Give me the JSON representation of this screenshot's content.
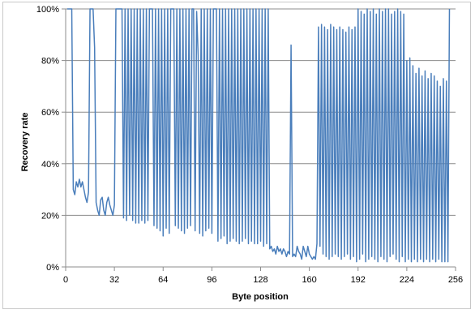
{
  "chart_data": {
    "type": "line",
    "title": "",
    "xlabel": "Byte position",
    "ylabel": "Recovery rate",
    "xlim": [
      0,
      256
    ],
    "ylim": [
      0,
      100
    ],
    "x_ticks": [
      0,
      32,
      64,
      96,
      128,
      160,
      192,
      224,
      256
    ],
    "x_tick_labels": [
      "0",
      "32",
      "64",
      "96",
      "128",
      "160",
      "192",
      "224",
      "256"
    ],
    "y_ticks": [
      0,
      20,
      40,
      60,
      80,
      100
    ],
    "y_tick_labels": [
      "0%",
      "20%",
      "40%",
      "60%",
      "80%",
      "100%"
    ],
    "grid": "horizontal",
    "legend": "none",
    "series_color": "#4a7ebb",
    "series": [
      {
        "x_start": 1,
        "x_step": 1,
        "values": [
          100,
          100,
          100,
          100,
          30,
          28,
          33,
          31,
          34,
          31,
          33,
          30,
          27,
          25,
          29,
          100,
          100,
          100,
          85,
          25,
          22,
          20,
          26,
          27,
          22,
          20,
          25,
          27,
          24,
          22,
          20,
          24,
          100,
          100,
          100,
          100,
          100,
          19,
          100,
          18,
          100,
          20,
          100,
          18,
          100,
          17,
          100,
          17,
          100,
          18,
          100,
          17,
          100,
          18,
          100,
          100,
          100,
          16,
          100,
          15,
          100,
          14,
          100,
          12,
          100,
          15,
          100,
          13,
          100,
          100,
          100,
          16,
          100,
          15,
          100,
          14,
          100,
          13,
          100,
          15,
          100,
          16,
          100,
          100,
          14,
          99,
          82,
          13,
          100,
          12,
          100,
          14,
          100,
          15,
          100,
          13,
          100,
          100,
          100,
          10,
          100,
          11,
          100,
          12,
          100,
          9,
          100,
          10,
          100,
          11,
          100,
          10,
          100,
          9,
          100,
          10,
          100,
          11,
          100,
          9,
          100,
          10,
          100,
          9,
          100,
          9,
          100,
          10,
          100,
          8,
          100,
          9,
          100,
          7,
          8,
          6,
          7,
          5,
          8,
          6,
          7,
          5,
          7,
          6,
          4,
          6,
          5,
          86,
          4,
          5,
          4,
          8,
          6,
          5,
          3,
          8,
          6,
          4,
          8,
          5,
          4,
          3,
          4,
          3,
          9,
          93,
          8,
          94,
          5,
          93,
          4,
          92,
          3,
          94,
          4,
          93,
          5,
          92,
          4,
          93,
          3,
          92,
          4,
          91,
          5,
          93,
          3,
          92,
          4,
          93,
          2,
          100,
          3,
          99,
          5,
          98,
          2,
          100,
          3,
          99,
          4,
          100,
          3,
          98,
          2,
          100,
          4,
          99,
          3,
          100,
          2,
          100,
          4,
          98,
          5,
          99,
          3,
          100,
          2,
          99,
          4,
          98,
          2,
          80,
          3,
          81,
          2,
          78,
          3,
          75,
          2,
          77,
          3,
          74,
          2,
          76,
          3,
          73,
          2,
          75,
          3,
          74,
          2,
          72,
          3,
          70,
          2,
          73,
          2,
          72,
          2,
          100
        ]
      }
    ]
  }
}
